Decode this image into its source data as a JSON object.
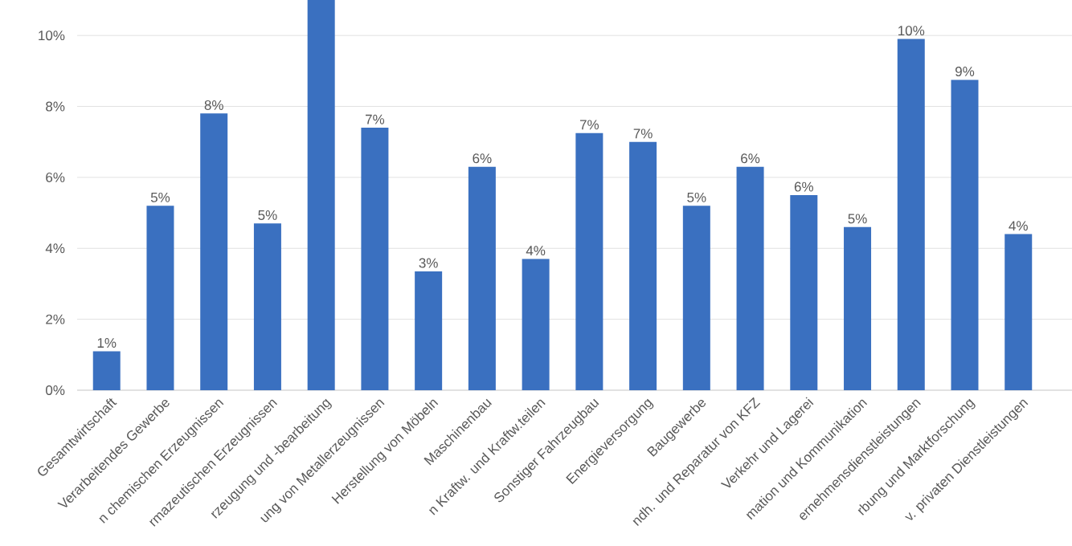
{
  "chart_data": {
    "type": "bar",
    "categories": [
      "Gesamtwirtschaft",
      "Verarbeitendes Gewerbe",
      "n chemischen Erzeugnissen",
      "rmazeutischen Erzeugnissen",
      "rzeugung und -bearbeitung",
      "ung von Metallerzeugnissen",
      "Herstellung von Möbeln",
      "Maschinenbau",
      "n Kraftw. und Kraftw.teilen",
      "Sonstiger Fahrzeugbau",
      "Energieversorgung",
      "Baugewerbe",
      "ndh. und Reparatur von KFZ",
      "Verkehr und Lagerei",
      "mation und Kommunikation",
      "ernehmensdienstleistungen",
      "rbung und Marktforschung",
      "v. privaten Dienstleistungen"
    ],
    "values": [
      1.1,
      5.2,
      7.8,
      4.7,
      11,
      7.4,
      3.35,
      6.3,
      3.7,
      7.25,
      7.0,
      5.2,
      6.3,
      5.5,
      4.6,
      9.9,
      8.75,
      4.4
    ],
    "value_labels": [
      "1%",
      "5%",
      "8%",
      "5%",
      null,
      "7%",
      "3%",
      "6%",
      "4%",
      "7%",
      "7%",
      "5%",
      "6%",
      "6%",
      "5%",
      "10%",
      "9%",
      "4%"
    ],
    "color": "#3a70c0",
    "ylim": [
      0,
      11
    ],
    "yticks": [
      {
        "value": 0,
        "label": "0%"
      },
      {
        "value": 2,
        "label": "2%"
      },
      {
        "value": 4,
        "label": "4%"
      },
      {
        "value": 6,
        "label": "6%"
      },
      {
        "value": 8,
        "label": "8%"
      },
      {
        "value": 10,
        "label": "10%"
      }
    ],
    "grid": "y"
  }
}
